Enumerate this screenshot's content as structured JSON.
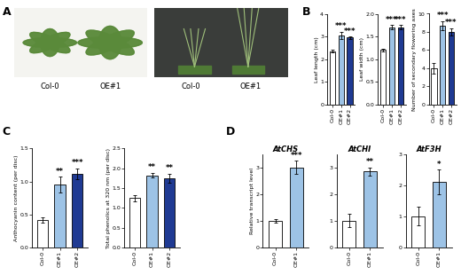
{
  "panel_labels": [
    "A",
    "B",
    "C",
    "D"
  ],
  "photos": [
    {
      "labels": [
        "Col-0",
        "OE#1"
      ]
    },
    {
      "labels": [
        "Col-0",
        "OE#1"
      ]
    }
  ],
  "chart_data": [
    {
      "type": "bar",
      "panel": "B",
      "ylabel": "Leaf length (cm)",
      "categories": [
        "Col-0",
        "OE#1",
        "OE#2"
      ],
      "values": [
        2.35,
        3.05,
        2.95
      ],
      "errors": [
        0.05,
        0.15,
        0.05
      ],
      "colors": [
        "#ffffff",
        "#9dc3e6",
        "#1f3a93"
      ],
      "significance": [
        null,
        "***",
        "***"
      ],
      "ylim": [
        0,
        4
      ],
      "yticks": [
        0,
        1,
        2,
        3,
        4
      ]
    },
    {
      "type": "bar",
      "panel": "B",
      "ylabel": "Leaf width (cm)",
      "categories": [
        "Col-0",
        "OE#1",
        "OE#2"
      ],
      "values": [
        1.2,
        1.7,
        1.7
      ],
      "errors": [
        0.03,
        0.05,
        0.05
      ],
      "colors": [
        "#ffffff",
        "#9dc3e6",
        "#1f3a93"
      ],
      "significance": [
        null,
        "***",
        "***"
      ],
      "ylim": [
        0,
        2.0
      ],
      "yticks": [
        0.0,
        0.5,
        1.0,
        1.5,
        2.0
      ]
    },
    {
      "type": "bar",
      "panel": "B",
      "ylabel": "Number of secondary flowering axes",
      "categories": [
        "Col-0",
        "OE#1",
        "OE#2"
      ],
      "values": [
        4,
        8.7,
        8
      ],
      "errors": [
        0.6,
        0.5,
        0.4
      ],
      "colors": [
        "#ffffff",
        "#9dc3e6",
        "#1f3a93"
      ],
      "significance": [
        null,
        "***",
        "***"
      ],
      "ylim": [
        0,
        10
      ],
      "yticks": [
        0,
        2,
        4,
        6,
        8,
        10
      ]
    },
    {
      "type": "bar",
      "panel": "C",
      "ylabel": "Anthocyanin content (per disc)",
      "categories": [
        "Col-0",
        "OE#1",
        "OE#2"
      ],
      "values": [
        0.42,
        0.95,
        1.12
      ],
      "errors": [
        0.04,
        0.12,
        0.08
      ],
      "colors": [
        "#ffffff",
        "#9dc3e6",
        "#1f3a93"
      ],
      "significance": [
        null,
        "**",
        "***"
      ],
      "ylim": [
        0,
        1.5
      ],
      "yticks": [
        0.0,
        0.5,
        1.0,
        1.5
      ]
    },
    {
      "type": "bar",
      "panel": "C",
      "ylabel": "Total phenolics at 320 nm (per disc)",
      "categories": [
        "Col-0",
        "OE#1",
        "OE#2"
      ],
      "values": [
        1.25,
        1.82,
        1.75
      ],
      "errors": [
        0.08,
        0.06,
        0.12
      ],
      "colors": [
        "#ffffff",
        "#9dc3e6",
        "#1f3a93"
      ],
      "significance": [
        null,
        "**",
        "**"
      ],
      "ylim": [
        0,
        2.5
      ],
      "yticks": [
        0.0,
        0.5,
        1.0,
        1.5,
        2.0,
        2.5
      ]
    },
    {
      "type": "bar",
      "panel": "D",
      "title": "AtCHS",
      "ylabel": "Relative transcript level",
      "categories": [
        "Col-0",
        "OE#1"
      ],
      "values": [
        1.0,
        3.0
      ],
      "errors": [
        0.07,
        0.25
      ],
      "colors": [
        "#ffffff",
        "#9dc3e6"
      ],
      "significance": [
        null,
        "***"
      ],
      "ylim": [
        0,
        3.5
      ],
      "yticks": [
        0,
        1,
        2,
        3
      ]
    },
    {
      "type": "bar",
      "panel": "D",
      "title": "AtCHI",
      "categories": [
        "Col-0",
        "OE#1"
      ],
      "values": [
        1.0,
        2.85
      ],
      "errors": [
        0.25,
        0.15
      ],
      "colors": [
        "#ffffff",
        "#9dc3e6"
      ],
      "significance": [
        null,
        "**"
      ],
      "ylim": [
        0,
        3.5
      ],
      "yticks": [
        0,
        1,
        2,
        3
      ]
    },
    {
      "type": "bar",
      "panel": "D",
      "title": "AtF3H",
      "categories": [
        "Col-0",
        "OE#1"
      ],
      "values": [
        1.0,
        2.1
      ],
      "errors": [
        0.3,
        0.4
      ],
      "colors": [
        "#ffffff",
        "#9dc3e6"
      ],
      "significance": [
        null,
        "*"
      ],
      "ylim": [
        0,
        3
      ],
      "yticks": [
        0,
        1,
        2,
        3
      ]
    }
  ]
}
